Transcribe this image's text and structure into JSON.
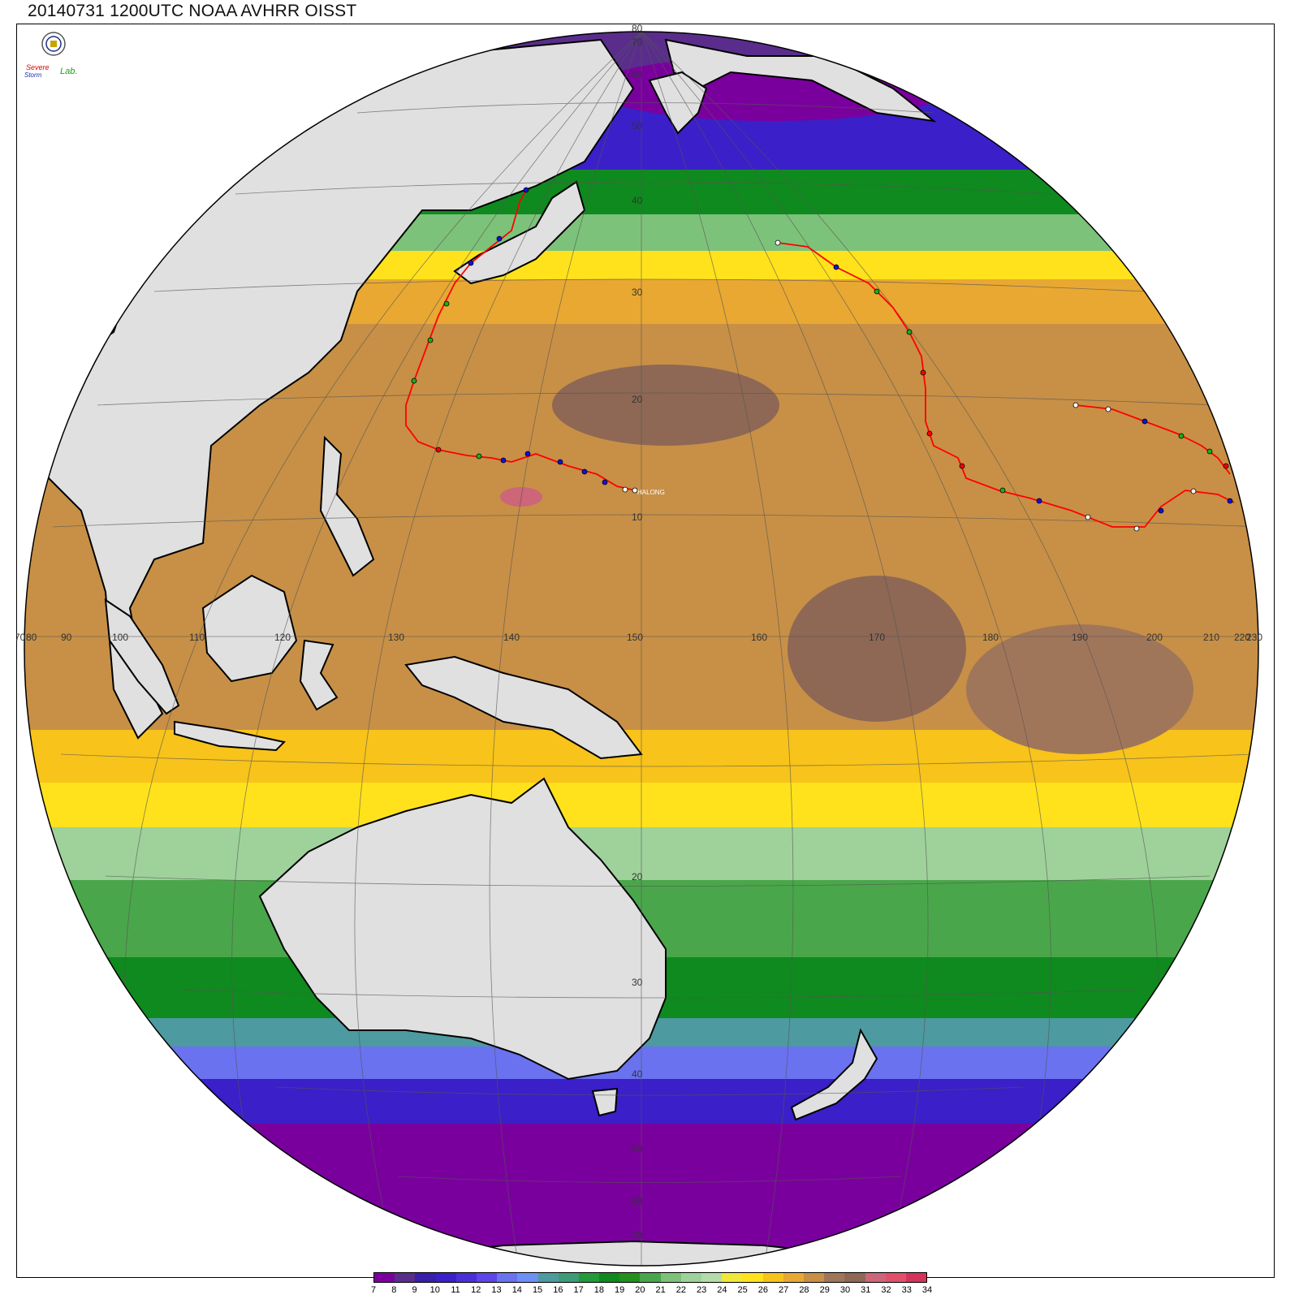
{
  "title": "20140731 1200UTC NOAA AVHRR OISST",
  "logo": {
    "text_line1": "Severe",
    "text_line2": "Storm",
    "text_line3": "Lab.",
    "icon": "university-seal-icon"
  },
  "storm_label": "HALONG",
  "colorbar": {
    "labels": [
      "7",
      "8",
      "9",
      "10",
      "11",
      "12",
      "13",
      "14",
      "15",
      "16",
      "17",
      "18",
      "19",
      "20",
      "21",
      "22",
      "23",
      "24",
      "25",
      "26",
      "27",
      "28",
      "29",
      "30",
      "31",
      "32",
      "33",
      "34"
    ],
    "colors": [
      "#7a009e",
      "#5a2d8c",
      "#3a1fa8",
      "#3b1fc8",
      "#4a2fd8",
      "#5c46e8",
      "#6a72f0",
      "#6e8ff4",
      "#4d9aa0",
      "#3f9a78",
      "#229a3a",
      "#0f8a1e",
      "#24901e",
      "#4aa64a",
      "#7dc27a",
      "#9ed29a",
      "#b3dda8",
      "#f0e83a",
      "#ffe21c",
      "#f8c31a",
      "#e8a832",
      "#c79046",
      "#a0765a",
      "#8e6855",
      "#cc6678",
      "#e0506a",
      "#d6335a"
    ]
  },
  "colors": {
    "land": "#e0e0e0",
    "coast": "#000000",
    "grid": "#555555",
    "track_line": "#ff0000",
    "track_marker_green": "#18b018",
    "track_marker_blue": "#1010e0",
    "track_marker_black": "#000000"
  },
  "graticule_labels": {
    "equator_lon": [
      "70",
      "80",
      "90",
      "100",
      "110",
      "120",
      "130",
      "140",
      "150",
      "160",
      "170",
      "180",
      "190",
      "200",
      "210",
      "220",
      "230"
    ],
    "lat_labels_north": [
      "10",
      "20",
      "30",
      "40",
      "50",
      "60",
      "70",
      "80"
    ],
    "lat_labels_south": [
      "20",
      "30",
      "40",
      "50",
      "60",
      "70"
    ]
  }
}
